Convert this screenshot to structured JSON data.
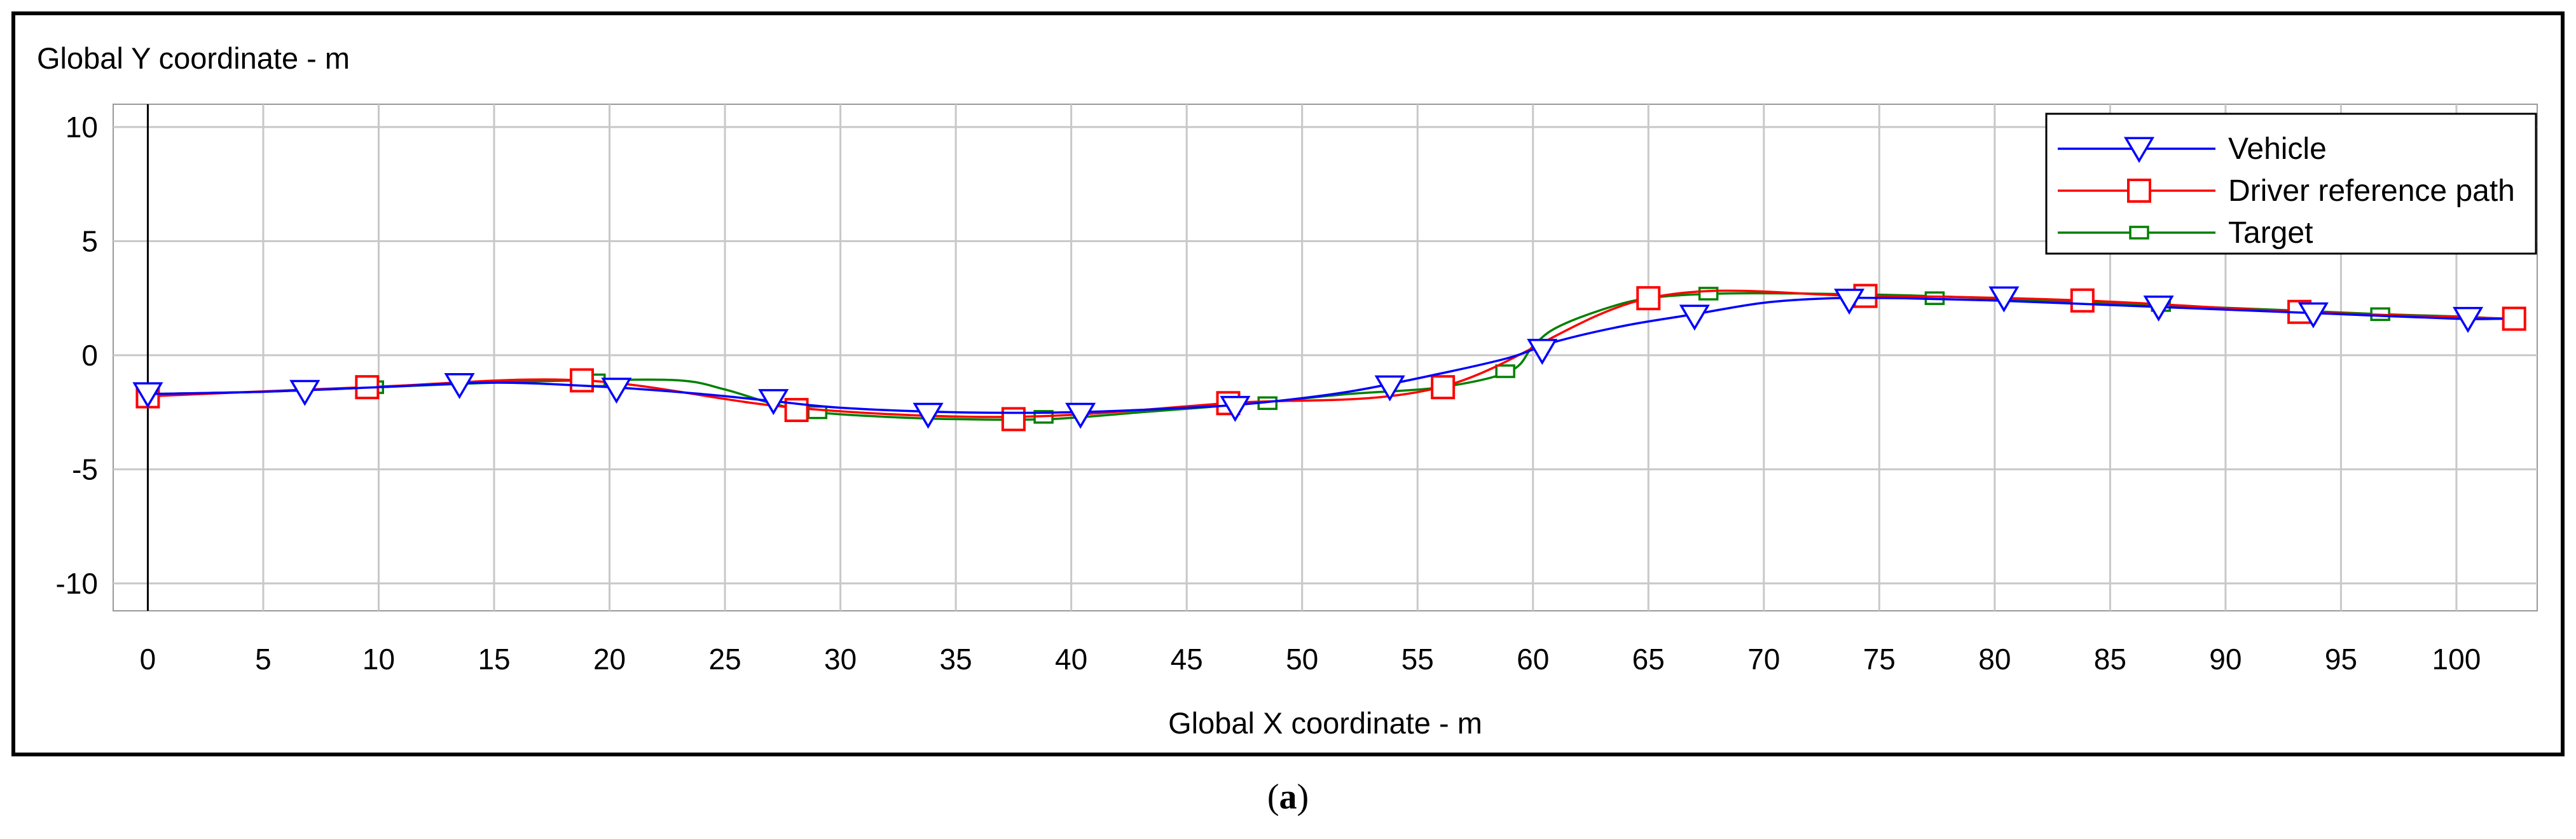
{
  "caption": {
    "open": "(",
    "letter": "a",
    "close": ")"
  },
  "chart_data": {
    "type": "line",
    "title": "",
    "xlabel": "Global X coordinate - m",
    "ylabel": "Global Y coordinate - m",
    "xlim": [
      -1.5,
      103.5
    ],
    "ylim": [
      -11.2,
      11
    ],
    "xticks": [
      0,
      5,
      10,
      15,
      20,
      25,
      30,
      35,
      40,
      45,
      50,
      55,
      60,
      65,
      70,
      75,
      80,
      85,
      90,
      95,
      100
    ],
    "yticks": [
      10,
      5,
      0,
      -5,
      -10
    ],
    "grid": true,
    "legend_position": "top-right",
    "series": [
      {
        "name": "Vehicle",
        "color": "#0000ff",
        "marker": "triangle-down",
        "curve": [
          [
            0,
            -1.7
          ],
          [
            5,
            -1.6
          ],
          [
            10,
            -1.4
          ],
          [
            15,
            -1.2
          ],
          [
            20,
            -1.4
          ],
          [
            24,
            -1.7
          ],
          [
            27,
            -2.0
          ],
          [
            30,
            -2.3
          ],
          [
            35,
            -2.5
          ],
          [
            40,
            -2.5
          ],
          [
            45,
            -2.3
          ],
          [
            48,
            -2.1
          ],
          [
            52,
            -1.6
          ],
          [
            56,
            -0.8
          ],
          [
            59,
            -0.1
          ],
          [
            61,
            0.6
          ],
          [
            64,
            1.3
          ],
          [
            67,
            1.8
          ],
          [
            70,
            2.3
          ],
          [
            73,
            2.5
          ],
          [
            76,
            2.5
          ],
          [
            80,
            2.4
          ],
          [
            85,
            2.2
          ],
          [
            90,
            2.0
          ],
          [
            95,
            1.8
          ],
          [
            100,
            1.6
          ],
          [
            102,
            1.6
          ]
        ],
        "marker_points": [
          [
            0,
            -1.7
          ],
          [
            6.8,
            -1.6
          ],
          [
            13.5,
            -1.3
          ],
          [
            20.3,
            -1.5
          ],
          [
            27.1,
            -2.0
          ],
          [
            33.8,
            -2.6
          ],
          [
            40.4,
            -2.6
          ],
          [
            47.1,
            -2.3
          ],
          [
            53.8,
            -1.4
          ],
          [
            60.4,
            0.2
          ],
          [
            67.0,
            1.7
          ],
          [
            73.7,
            2.4
          ],
          [
            80.4,
            2.5
          ],
          [
            87.1,
            2.1
          ],
          [
            93.8,
            1.8
          ],
          [
            100.5,
            1.6
          ]
        ]
      },
      {
        "name": "Driver reference path",
        "color": "#ff0000",
        "marker": "square",
        "curve": [
          [
            0,
            -1.8
          ],
          [
            9.5,
            -1.4
          ],
          [
            18.8,
            -1.1
          ],
          [
            28,
            -2.3
          ],
          [
            37.5,
            -2.7
          ],
          [
            46.8,
            -2.1
          ],
          [
            56,
            -1.4
          ],
          [
            65,
            2.5
          ],
          [
            74.4,
            2.6
          ],
          [
            83.8,
            2.4
          ],
          [
            93.2,
            1.9
          ],
          [
            102.5,
            1.6
          ]
        ],
        "marker_points": [
          [
            0,
            -1.8
          ],
          [
            9.5,
            -1.4
          ],
          [
            18.8,
            -1.1
          ],
          [
            28.1,
            -2.4
          ],
          [
            37.5,
            -2.8
          ],
          [
            46.8,
            -2.1
          ],
          [
            56.1,
            -1.4
          ],
          [
            65.0,
            2.5
          ],
          [
            74.4,
            2.6
          ],
          [
            83.8,
            2.4
          ],
          [
            93.2,
            1.9
          ],
          [
            102.5,
            1.6
          ]
        ]
      },
      {
        "name": "Target",
        "color": "#008000",
        "marker": "small-square",
        "curve": [
          [
            0,
            -1.7
          ],
          [
            5,
            -1.6
          ],
          [
            10,
            -1.4
          ],
          [
            15,
            -1.2
          ],
          [
            19,
            -1.1
          ],
          [
            23,
            -1.1
          ],
          [
            25,
            -1.5
          ],
          [
            27,
            -2.1
          ],
          [
            29,
            -2.5
          ],
          [
            32,
            -2.7
          ],
          [
            35,
            -2.8
          ],
          [
            39,
            -2.8
          ],
          [
            43,
            -2.5
          ],
          [
            48,
            -2.1
          ],
          [
            52,
            -1.7
          ],
          [
            56,
            -1.4
          ],
          [
            59,
            -0.7
          ],
          [
            60,
            0.4
          ],
          [
            61,
            1.2
          ],
          [
            63,
            2.0
          ],
          [
            65,
            2.5
          ],
          [
            68,
            2.7
          ],
          [
            72,
            2.7
          ],
          [
            77,
            2.6
          ],
          [
            82,
            2.4
          ],
          [
            87,
            2.2
          ],
          [
            92,
            2.0
          ],
          [
            96.7,
            1.8
          ],
          [
            100,
            1.7
          ],
          [
            102,
            1.6
          ]
        ],
        "marker_points": [
          [
            0,
            -1.7
          ],
          [
            9.8,
            -1.4
          ],
          [
            19.4,
            -1.1
          ],
          [
            29.0,
            -2.5
          ],
          [
            38.8,
            -2.7
          ],
          [
            48.5,
            -2.1
          ],
          [
            58.8,
            -0.7
          ],
          [
            67.6,
            2.7
          ],
          [
            77.4,
            2.5
          ],
          [
            87.2,
            2.2
          ],
          [
            96.7,
            1.8
          ]
        ]
      }
    ]
  }
}
